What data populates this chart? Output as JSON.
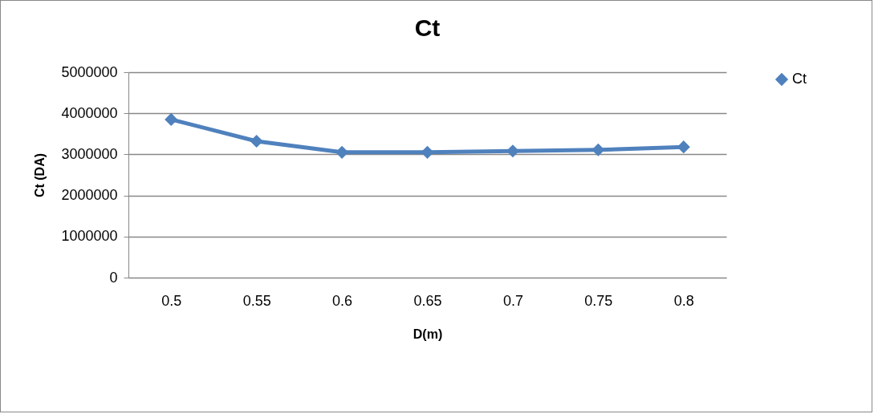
{
  "chart_data": {
    "type": "line",
    "title": "Ct",
    "xlabel": "D(m)",
    "ylabel": "Ct  (DA)",
    "categories": [
      "0.5",
      "0.55",
      "0.6",
      "0.65",
      "0.7",
      "0.75",
      "0.8"
    ],
    "series": [
      {
        "name": "Ct",
        "color": "#4f81bd",
        "values": [
          3850000,
          3320000,
          3050000,
          3050000,
          3080000,
          3110000,
          3180000
        ]
      }
    ],
    "ylim": [
      0,
      5000000
    ],
    "yticks": [
      0,
      1000000,
      2000000,
      3000000,
      4000000,
      5000000
    ],
    "grid": "y",
    "legend": "right",
    "marker": "diamond",
    "line_style": "solid"
  }
}
